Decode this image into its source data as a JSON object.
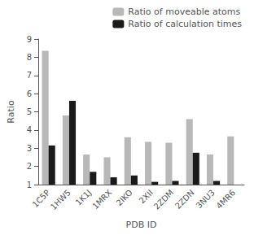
{
  "chart_data": {
    "type": "bar",
    "categories": [
      "1C5P",
      "1HW5",
      "1K1J",
      "1MRX",
      "2IKO",
      "2XII",
      "2ZDM",
      "2ZDN",
      "3NU3",
      "4MR6"
    ],
    "series": [
      {
        "name": "Ratio of moveable atoms",
        "color": "#b8b8b8",
        "values": [
          8.35,
          4.8,
          2.65,
          2.5,
          3.6,
          3.35,
          3.3,
          4.6,
          2.65,
          3.65
        ]
      },
      {
        "name": "Ratio of calculation times",
        "color": "#1a1a1a",
        "values": [
          3.15,
          5.6,
          1.7,
          1.4,
          1.5,
          1.15,
          1.2,
          2.75,
          1.2,
          1.0
        ]
      }
    ],
    "xlabel": "PDB ID",
    "ylabel": "Ratio",
    "ylim": [
      1,
      9
    ],
    "yticks": [
      1,
      2,
      3,
      4,
      5,
      6,
      7,
      8,
      9
    ],
    "grid": false,
    "legend": "upper right"
  }
}
